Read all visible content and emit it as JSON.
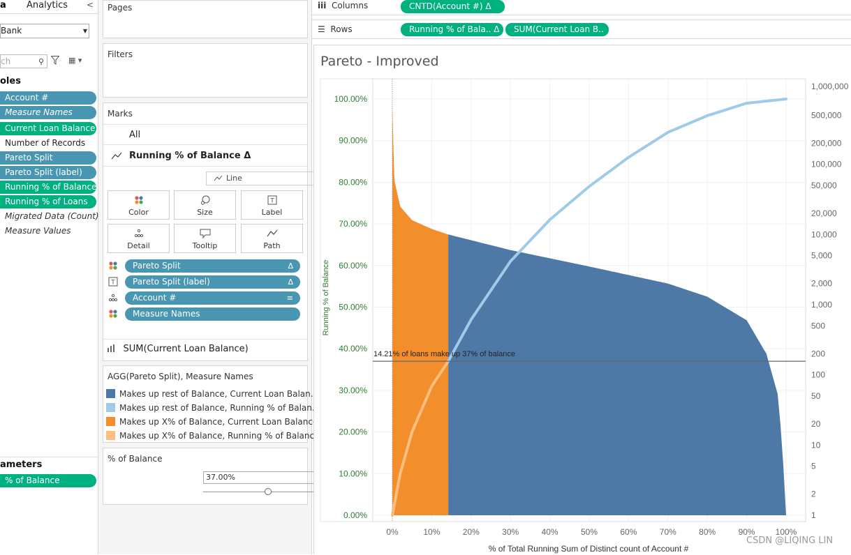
{
  "data_pane": {
    "tab_data": "a",
    "tab_analytics": "Analytics",
    "collapse": "<",
    "datasource": "Bank",
    "search_placeholder": "ch",
    "tables_header": "oles",
    "fields": [
      {
        "label": "Account #",
        "style": "pill-blue"
      },
      {
        "label": "Measure Names",
        "style": "pill-blue ital-white"
      },
      {
        "label": "Current Loan Balance",
        "style": "pill-green"
      },
      {
        "label": "Number of Records",
        "style": "plain"
      },
      {
        "label": "Pareto Split",
        "style": "pill-blue"
      },
      {
        "label": "Pareto Split (label)",
        "style": "pill-blue"
      },
      {
        "label": "Running % of Balance",
        "style": "pill-green"
      },
      {
        "label": "Running % of Loans",
        "style": "pill-green"
      },
      {
        "label": "Migrated Data (Count)",
        "style": "ital"
      },
      {
        "label": "Measure Values",
        "style": "ital"
      }
    ],
    "parameters_header": "ameters",
    "parameter": "% of Balance"
  },
  "pages_card": {
    "title": "Pages"
  },
  "filters_card": {
    "title": "Filters"
  },
  "marks_card": {
    "title": "Marks",
    "all_label": "All",
    "active_label": "Running % of Balance Δ",
    "mark_type": "Line",
    "buttons": [
      "Color",
      "Size",
      "Label",
      "Detail",
      "Tooltip",
      "Path"
    ],
    "pills": [
      {
        "label": "Pareto Split",
        "tail": "Δ",
        "icon": "color-icon"
      },
      {
        "label": "Pareto Split (label)",
        "tail": "Δ",
        "icon": "label-icon"
      },
      {
        "label": "Account #",
        "tail": "≡",
        "icon": "detail-icon"
      },
      {
        "label": "Measure Names",
        "tail": "",
        "icon": "color-icon"
      }
    ],
    "second_measure": "SUM(Current Loan Balance)"
  },
  "legend": {
    "title": "AGG(Pareto Split), Measure Names",
    "items": [
      {
        "label": "Makes up rest of Balance, Current Loan Balan..",
        "color": "#4e79a7"
      },
      {
        "label": "Makes up rest of Balance, Running % of Balan..",
        "color": "#a0cbe8"
      },
      {
        "label": "Makes up X% of Balance, Current Loan Balance",
        "color": "#f28e2b"
      },
      {
        "label": "Makes up X% of Balance, Running % of Balance",
        "color": "#ffbe7d"
      }
    ]
  },
  "param_card": {
    "title": "% of Balance",
    "value": "37.00%",
    "slider_fraction": 0.37
  },
  "shelves": {
    "columns_label": "Columns",
    "columns_pill": "CNTD(Account #)  Δ",
    "rows_label": "Rows",
    "rows_pill_1": "Running % of Bala..  Δ",
    "rows_pill_2": "SUM(Current Loan B.."
  },
  "view": {
    "title": "Pareto - Improved"
  },
  "chart_data": {
    "type": "line",
    "title": "Pareto - Improved",
    "xlabel": "% of Total Running Sum of Distinct count of Account #",
    "ylabel_left": "Running % of Balance",
    "x_ticks": [
      "0%",
      "10%",
      "20%",
      "30%",
      "40%",
      "50%",
      "60%",
      "70%",
      "80%",
      "90%",
      "100%"
    ],
    "y_ticks_left": [
      "0.00%",
      "10.00%",
      "20.00%",
      "30.00%",
      "40.00%",
      "50.00%",
      "60.00%",
      "70.00%",
      "80.00%",
      "90.00%",
      "100.00%"
    ],
    "y_ticks_right": [
      "1",
      "2",
      "5",
      "10",
      "20",
      "50",
      "100",
      "200",
      "500",
      "1,000",
      "2,000",
      "5,000",
      "10,000",
      "20,000",
      "50,000",
      "100,000",
      "200,000",
      "500,000",
      "1,000,000"
    ],
    "ylim_left": [
      0,
      1
    ],
    "y_right_scale": "log",
    "reference_line": {
      "value": 0.37,
      "label": "14.21% of loans make up 37% of balance"
    },
    "split_x": 0.1421,
    "running_balance": {
      "x": [
        0,
        0.02,
        0.05,
        0.1,
        0.1421,
        0.2,
        0.3,
        0.4,
        0.5,
        0.6,
        0.7,
        0.8,
        0.9,
        0.95,
        1.0
      ],
      "y": [
        0,
        0.1,
        0.2,
        0.31,
        0.37,
        0.47,
        0.61,
        0.71,
        0.79,
        0.86,
        0.92,
        0.96,
        0.99,
        0.995,
        1.0
      ]
    },
    "loan_balance_log": {
      "x": [
        0,
        0.005,
        0.02,
        0.05,
        0.1,
        0.1421,
        0.3,
        0.5,
        0.7,
        0.8,
        0.9,
        0.95,
        0.98,
        0.99,
        1.0
      ],
      "y": [
        700000,
        60000,
        25000,
        16000,
        12000,
        10000,
        6000,
        3500,
        2000,
        1300,
        600,
        200,
        50,
        10,
        1
      ]
    },
    "colors": {
      "rest_bar": "#4e79a7",
      "rest_line": "#a0cbe8",
      "x_bar": "#f28e2b",
      "x_line": "#ffbe7d",
      "axis_text": "#2e7d32"
    }
  },
  "watermark": "CSDN @LIQING LIN"
}
